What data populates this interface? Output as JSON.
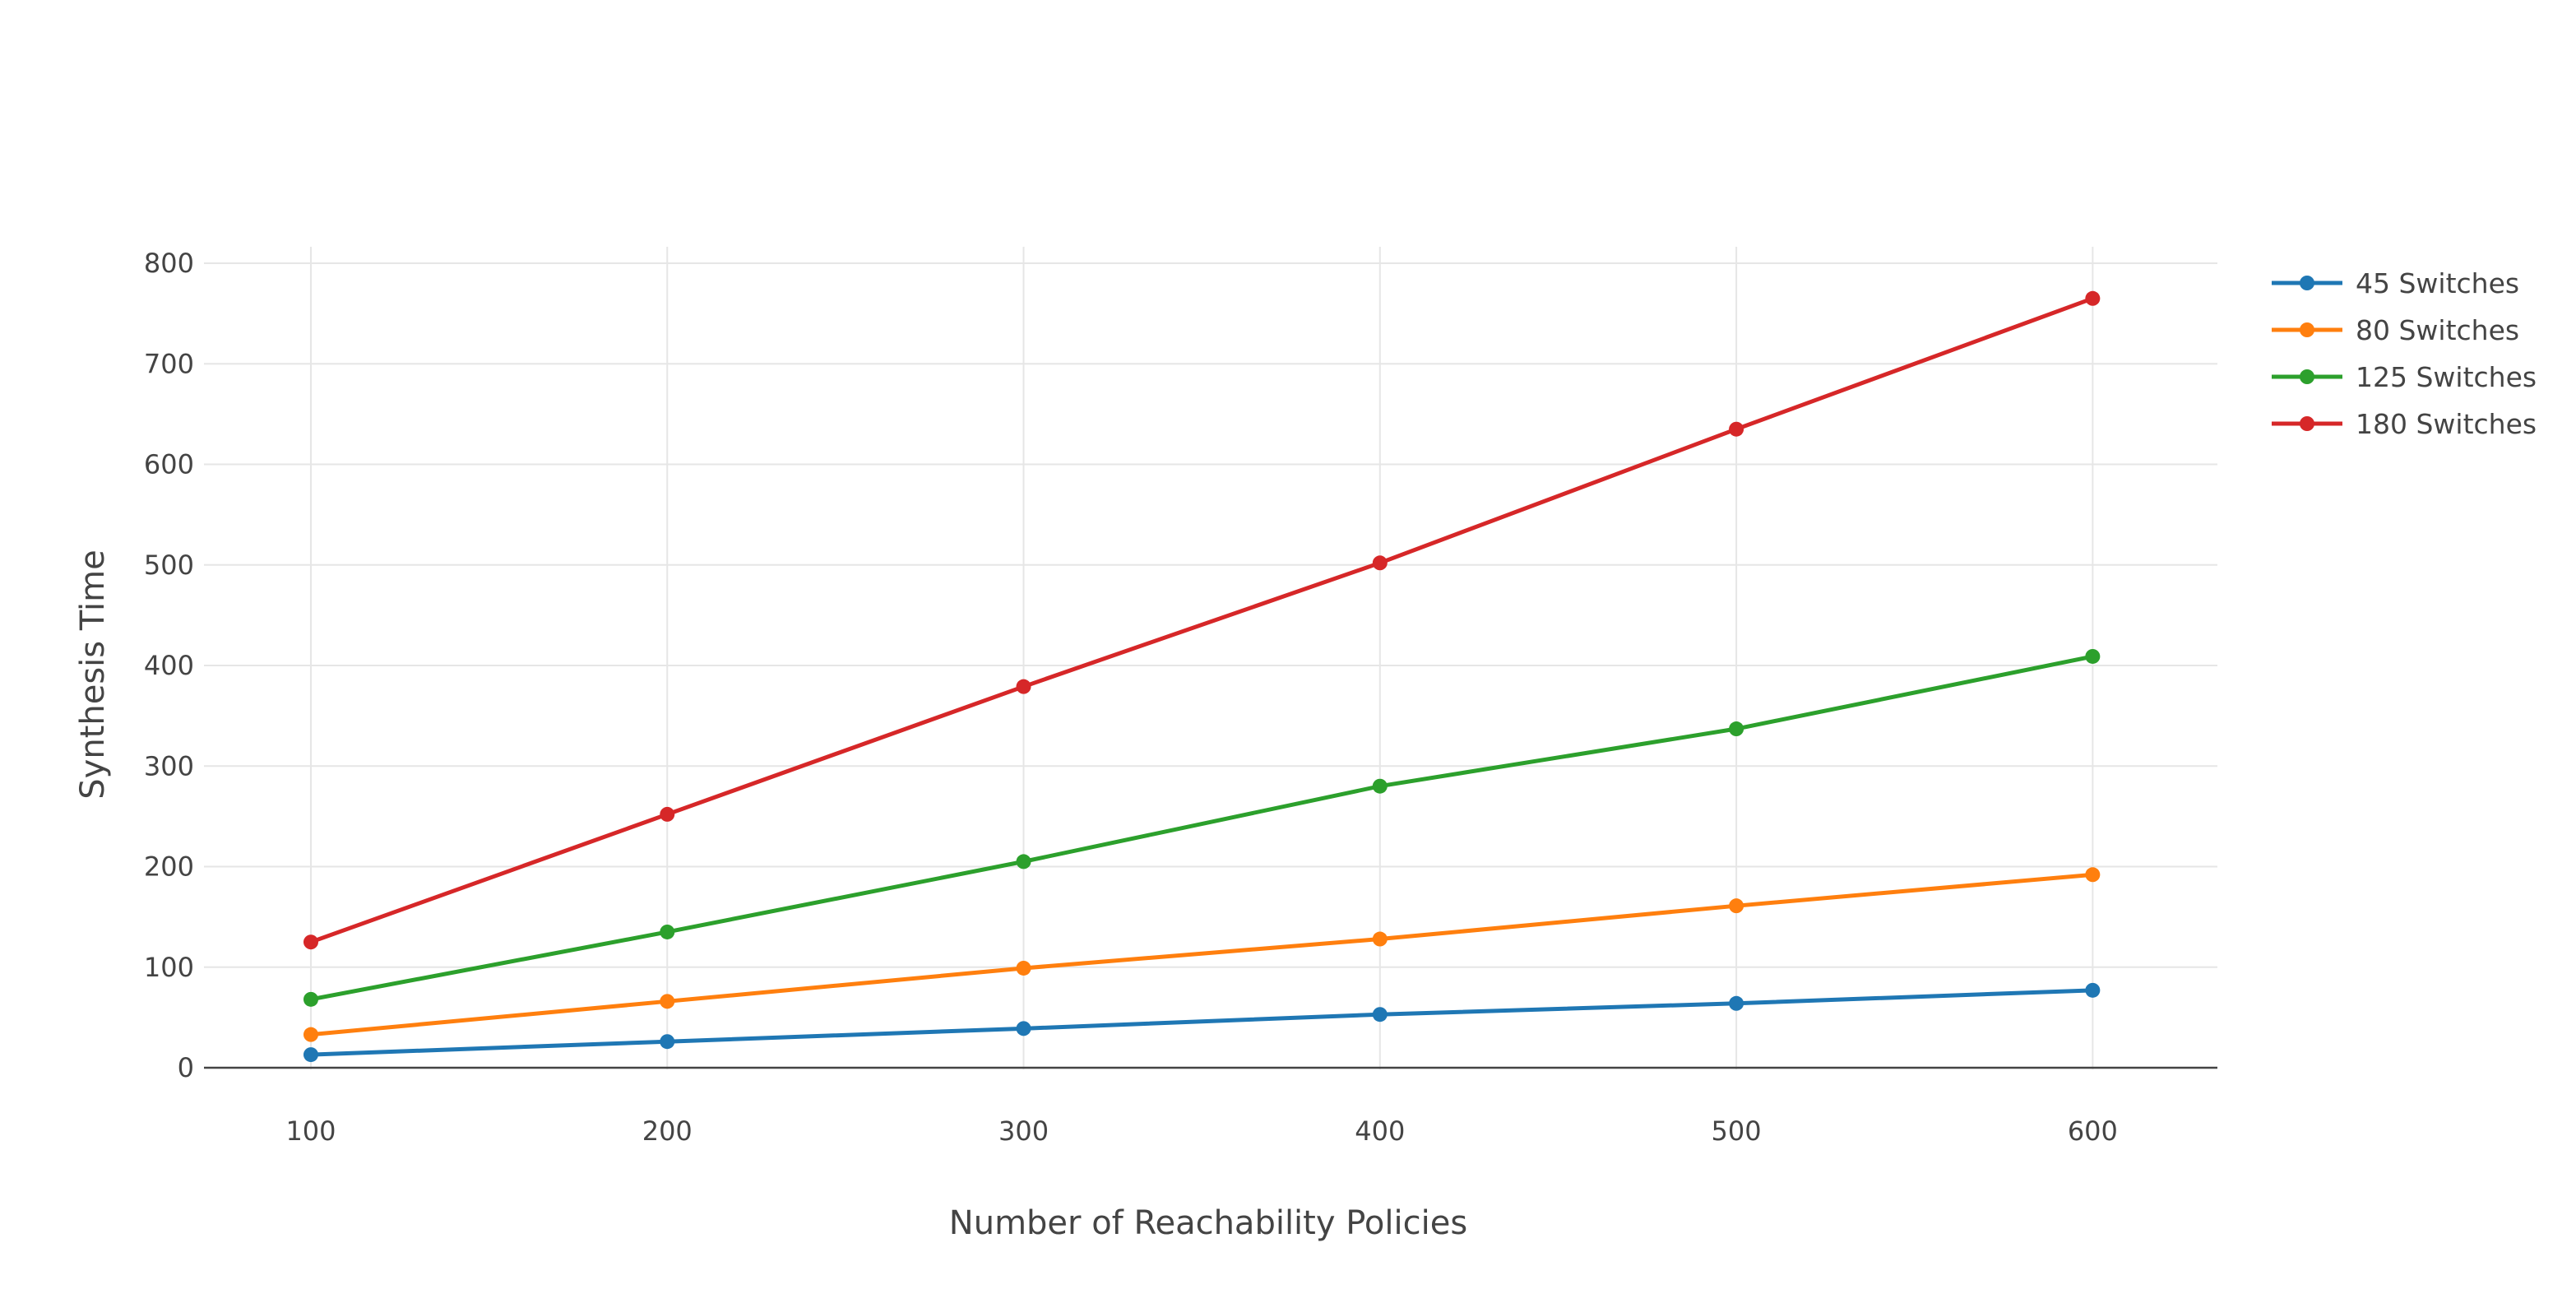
{
  "chart_data": {
    "type": "line",
    "title": "",
    "xlabel": "Number of Reachability Policies",
    "ylabel": "Synthesis Time",
    "x": [
      100,
      200,
      300,
      400,
      500,
      600
    ],
    "x_ticks": [
      "100",
      "200",
      "300",
      "400",
      "500",
      "600"
    ],
    "y_ticks": [
      "0",
      "100",
      "200",
      "300",
      "400",
      "500",
      "600",
      "700",
      "800"
    ],
    "xlim": [
      70,
      635
    ],
    "ylim": [
      0,
      800
    ],
    "grid": true,
    "legend_position": "top-right",
    "series": [
      {
        "name": "45 Switches",
        "color": "#1f77b4",
        "values": [
          13,
          26,
          39,
          53,
          64,
          77
        ]
      },
      {
        "name": "80 Switches",
        "color": "#ff7f0e",
        "values": [
          33,
          66,
          99,
          128,
          161,
          192
        ]
      },
      {
        "name": "125 Switches",
        "color": "#2ca02c",
        "values": [
          68,
          135,
          205,
          280,
          337,
          409
        ]
      },
      {
        "name": "180 Switches",
        "color": "#d62728",
        "values": [
          125,
          252,
          379,
          502,
          635,
          765
        ]
      }
    ]
  }
}
